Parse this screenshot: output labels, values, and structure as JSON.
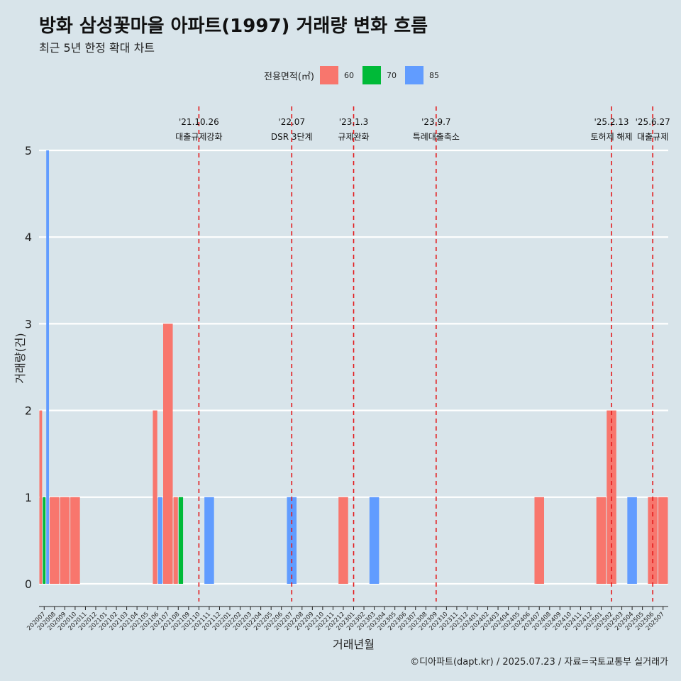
{
  "title": "방화 삼성꽃마을 아파트(1997) 거래량 변화 흐름",
  "subtitle": "최근 5년 한정 확대 차트",
  "footer": "©디아파트(dapt.kr) / 2025.07.23 / 자료=국토교통부 실거래가",
  "legend": {
    "title": "전용면적(㎡)",
    "items": [
      {
        "label": "60",
        "color": "#f8766d"
      },
      {
        "label": "70",
        "color": "#00ba38"
      },
      {
        "label": "85",
        "color": "#619cff"
      }
    ]
  },
  "chart_data": {
    "type": "bar",
    "xlabel": "거래년월",
    "ylabel": "거래량(건)",
    "ylim": [
      0,
      5
    ],
    "yticks": [
      0,
      1,
      2,
      3,
      4,
      5
    ],
    "grid": true,
    "categories": [
      "202007",
      "202008",
      "202009",
      "202010",
      "202011",
      "202012",
      "202101",
      "202102",
      "202103",
      "202104",
      "202105",
      "202106",
      "202107",
      "202108",
      "202109",
      "202110",
      "202111",
      "202112",
      "202201",
      "202202",
      "202203",
      "202204",
      "202205",
      "202206",
      "202207",
      "202208",
      "202209",
      "202210",
      "202211",
      "202212",
      "202301",
      "202302",
      "202303",
      "202304",
      "202305",
      "202306",
      "202307",
      "202308",
      "202309",
      "202310",
      "202311",
      "202312",
      "202401",
      "202402",
      "202403",
      "202404",
      "202405",
      "202406",
      "202407",
      "202408",
      "202409",
      "202410",
      "202411",
      "202412",
      "202501",
      "202502",
      "202503",
      "202504",
      "202505",
      "202506",
      "202507"
    ],
    "series": [
      {
        "name": "60",
        "color": "#f8766d",
        "values": [
          2,
          1,
          1,
          1,
          0,
          0,
          0,
          0,
          0,
          0,
          0,
          2,
          3,
          1,
          0,
          0,
          0,
          0,
          0,
          0,
          0,
          0,
          0,
          0,
          0,
          0,
          0,
          0,
          0,
          1,
          0,
          0,
          0,
          0,
          0,
          0,
          0,
          0,
          0,
          0,
          0,
          0,
          0,
          0,
          0,
          0,
          0,
          0,
          1,
          0,
          0,
          0,
          0,
          0,
          1,
          2,
          0,
          0,
          0,
          1,
          1
        ]
      },
      {
        "name": "70",
        "color": "#00ba38",
        "values": [
          1,
          0,
          0,
          0,
          0,
          0,
          0,
          0,
          0,
          0,
          0,
          0,
          0,
          1,
          0,
          0,
          0,
          0,
          0,
          0,
          0,
          0,
          0,
          0,
          0,
          0,
          0,
          0,
          0,
          0,
          0,
          0,
          0,
          0,
          0,
          0,
          0,
          0,
          0,
          0,
          0,
          0,
          0,
          0,
          0,
          0,
          0,
          0,
          0,
          0,
          0,
          0,
          0,
          0,
          0,
          0,
          0,
          0,
          0,
          0,
          0
        ]
      },
      {
        "name": "85",
        "color": "#619cff",
        "values": [
          5,
          0,
          0,
          0,
          0,
          0,
          0,
          0,
          0,
          0,
          0,
          1,
          0,
          0,
          0,
          0,
          1,
          0,
          0,
          0,
          0,
          0,
          0,
          0,
          1,
          0,
          0,
          0,
          0,
          0,
          0,
          0,
          1,
          0,
          0,
          0,
          0,
          0,
          0,
          0,
          0,
          0,
          0,
          0,
          0,
          0,
          0,
          0,
          0,
          0,
          0,
          0,
          0,
          0,
          0,
          0,
          0,
          1,
          0,
          0,
          0
        ]
      }
    ],
    "annotations": [
      {
        "x": 15.5,
        "date": "'21.10.26",
        "label": "대출규제강화"
      },
      {
        "x": 24.5,
        "date": "'22.07",
        "label": "DSR 3단계"
      },
      {
        "x": 30.5,
        "date": "'23.1.3",
        "label": "규제완화"
      },
      {
        "x": 38.5,
        "date": "'23.9.7",
        "label": "특례대출축소"
      },
      {
        "x": 55.5,
        "date": "'25.2.13",
        "label": "토허제 해제"
      },
      {
        "x": 59.5,
        "date": "'25.6.27",
        "label": "대출규제"
      }
    ]
  }
}
